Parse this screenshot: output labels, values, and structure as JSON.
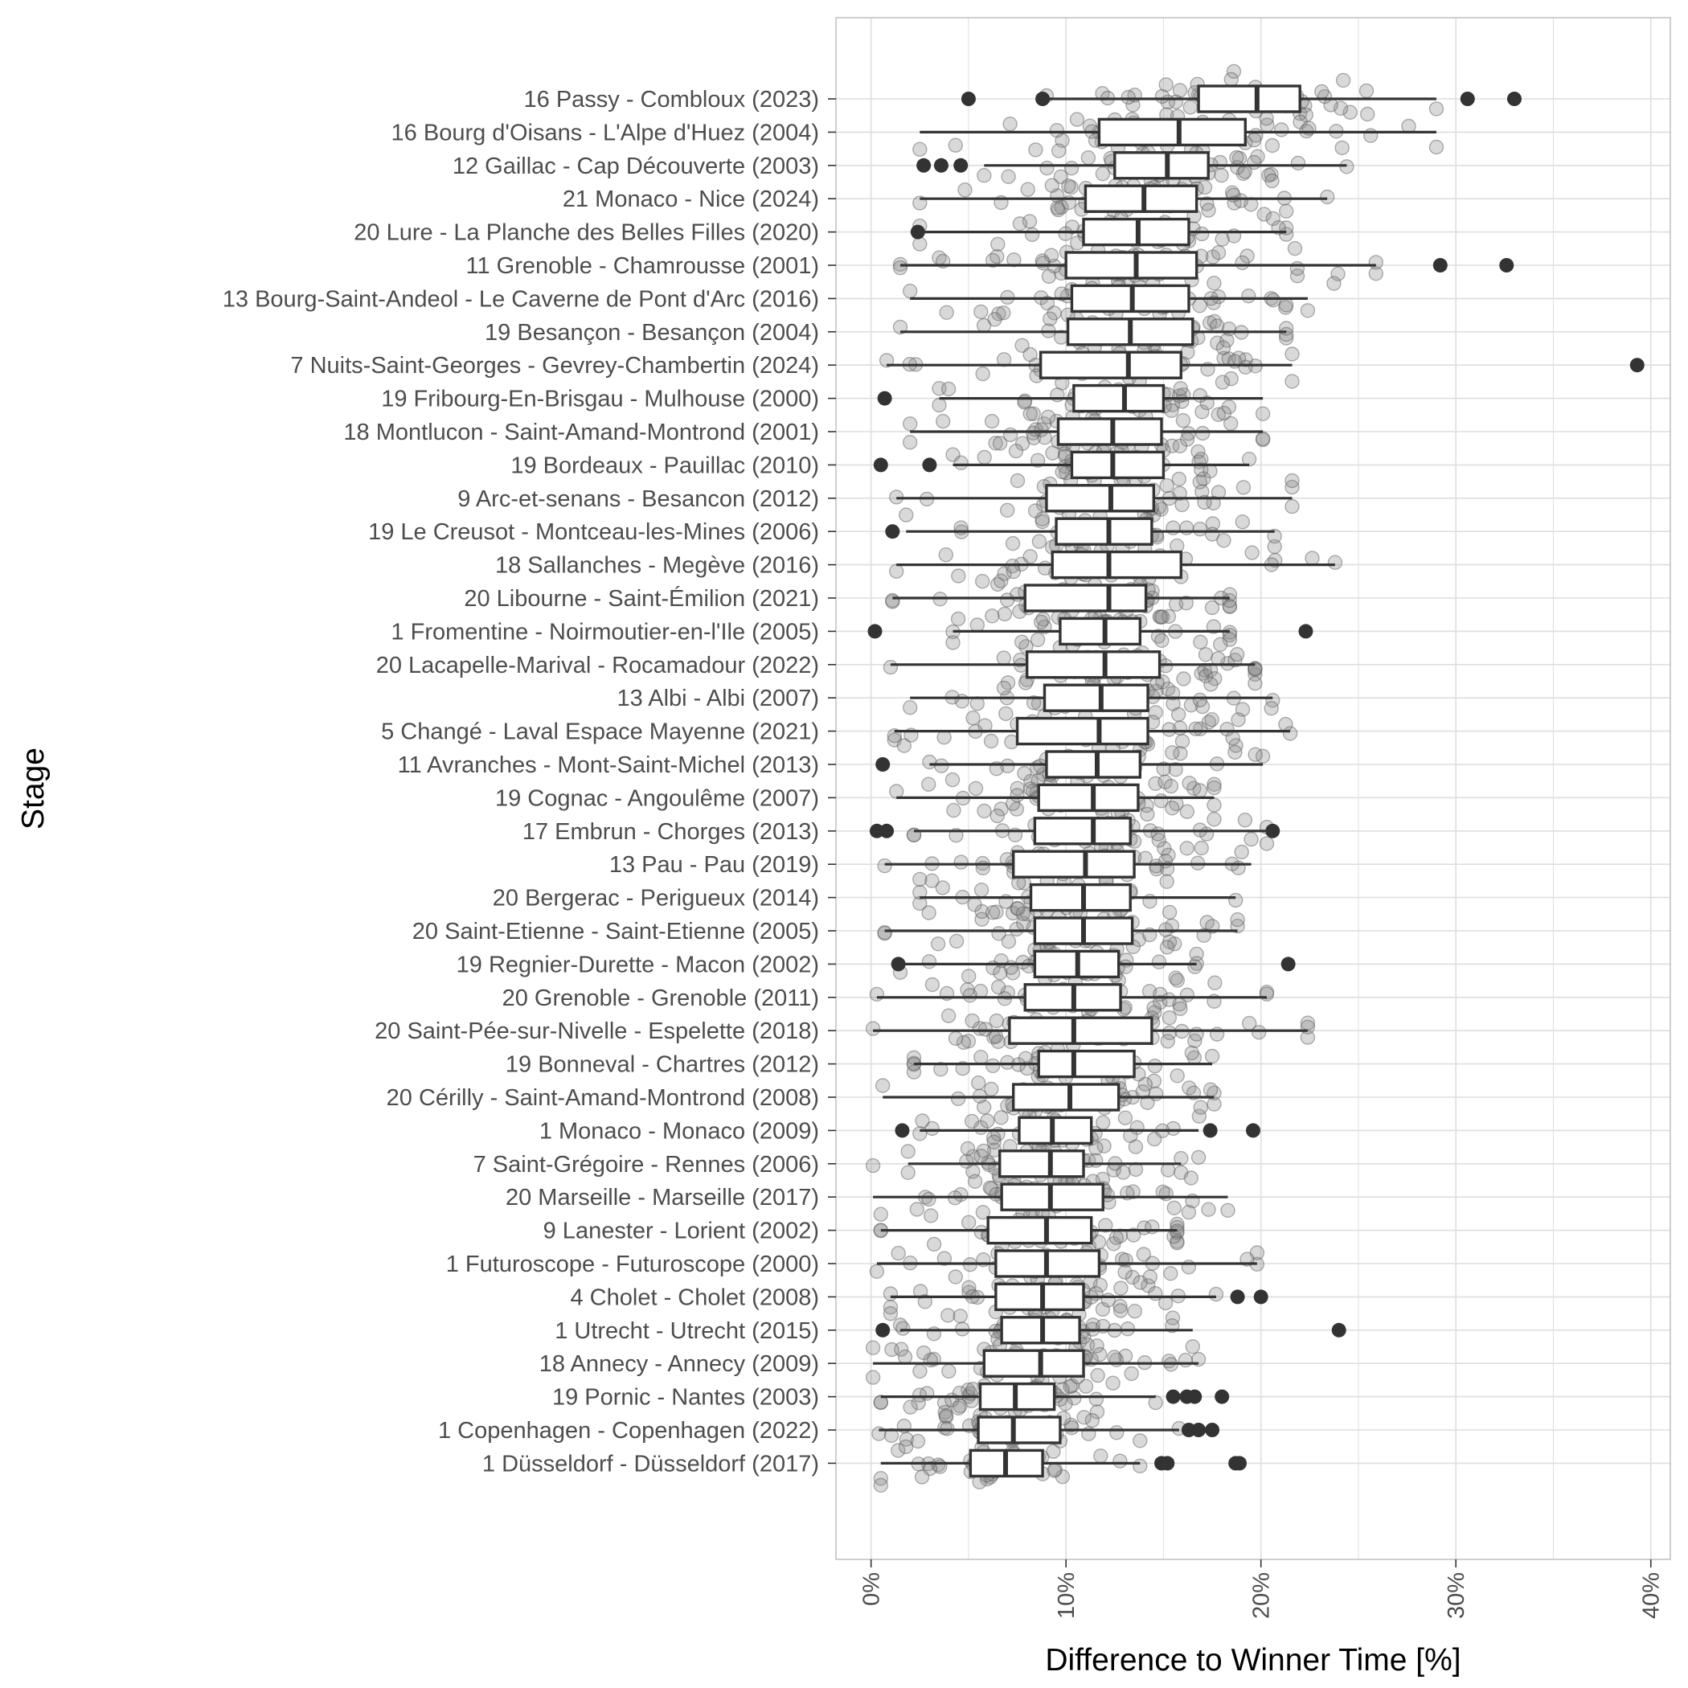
{
  "chart_data": {
    "type": "boxplot",
    "orientation": "horizontal",
    "xlabel": "Difference to Winner Time [%]",
    "ylabel": "Stage",
    "xlim": [
      -1.8,
      41
    ],
    "x_ticks": [
      0,
      10,
      20,
      30,
      40
    ],
    "x_tick_labels": [
      "0%",
      "10%",
      "20%",
      "30%",
      "40%"
    ],
    "grid": true,
    "series": [
      {
        "stage": "16 Passy - Combloux (2023)",
        "whisker_low": 9,
        "q1": 16.8,
        "median": 19.8,
        "q3": 22,
        "whisker_high": 29,
        "outliers": [
          5,
          8.8,
          30.6,
          33
        ]
      },
      {
        "stage": "16 Bourg d'Oisans - L'Alpe d'Huez (2004)",
        "whisker_low": 2.5,
        "q1": 11.7,
        "median": 15.8,
        "q3": 19.2,
        "whisker_high": 29,
        "outliers": []
      },
      {
        "stage": "12 Gaillac - Cap Découverte (2003)",
        "whisker_low": 5.8,
        "q1": 12.5,
        "median": 15.2,
        "q3": 17.3,
        "whisker_high": 24.4,
        "outliers": [
          2.7,
          3.6,
          4.6
        ]
      },
      {
        "stage": "21 Monaco - Nice (2024)",
        "whisker_low": 2.5,
        "q1": 11,
        "median": 14,
        "q3": 16.7,
        "whisker_high": 23.4,
        "outliers": []
      },
      {
        "stage": "20 Lure - La Planche des Belles Filles (2020)",
        "whisker_low": 2.5,
        "q1": 10.9,
        "median": 13.7,
        "q3": 16.3,
        "whisker_high": 21.3,
        "outliers": [
          2.4
        ]
      },
      {
        "stage": "11 Grenoble - Chamrousse (2001)",
        "whisker_low": 1.5,
        "q1": 10,
        "median": 13.6,
        "q3": 16.7,
        "whisker_high": 25.9,
        "outliers": [
          29.2,
          32.6
        ]
      },
      {
        "stage": "13 Bourg-Saint-Andeol - Le Caverne de Pont d'Arc (2016)",
        "whisker_low": 2,
        "q1": 10.3,
        "median": 13.4,
        "q3": 16.3,
        "whisker_high": 22.4,
        "outliers": []
      },
      {
        "stage": "19 Besançon - Besançon (2004)",
        "whisker_low": 1.5,
        "q1": 10.1,
        "median": 13.3,
        "q3": 16.5,
        "whisker_high": 21.3,
        "outliers": []
      },
      {
        "stage": "7 Nuits-Saint-Georges - Gevrey-Chambertin (2024)",
        "whisker_low": 0.8,
        "q1": 8.7,
        "median": 13.2,
        "q3": 15.9,
        "whisker_high": 21.6,
        "outliers": [
          39.3
        ]
      },
      {
        "stage": "19 Fribourg-En-Brisgau - Mulhouse (2000)",
        "whisker_low": 3.5,
        "q1": 10.4,
        "median": 13,
        "q3": 15,
        "whisker_high": 20.1,
        "outliers": [
          0.7
        ]
      },
      {
        "stage": "18 Montlucon - Saint-Amand-Montrond (2001)",
        "whisker_low": 2,
        "q1": 9.6,
        "median": 12.4,
        "q3": 14.9,
        "whisker_high": 20.1,
        "outliers": []
      },
      {
        "stage": "19 Bordeaux - Pauillac (2010)",
        "whisker_low": 4.2,
        "q1": 10.3,
        "median": 12.4,
        "q3": 15,
        "whisker_high": 19.4,
        "outliers": [
          0.5,
          3
        ]
      },
      {
        "stage": "9 Arc-et-senans - Besancon (2012)",
        "whisker_low": 1.3,
        "q1": 9,
        "median": 12.3,
        "q3": 14.5,
        "whisker_high": 21.6,
        "outliers": []
      },
      {
        "stage": "19 Le Creusot - Montceau-les-Mines (2006)",
        "whisker_low": 1.8,
        "q1": 9.5,
        "median": 12.2,
        "q3": 14.4,
        "whisker_high": 20.7,
        "outliers": [
          1.1
        ]
      },
      {
        "stage": "18 Sallanches - Megève (2016)",
        "whisker_low": 1.3,
        "q1": 9.3,
        "median": 12.2,
        "q3": 15.9,
        "whisker_high": 23.8,
        "outliers": []
      },
      {
        "stage": "20 Libourne - Saint-Émilion (2021)",
        "whisker_low": 1.1,
        "q1": 7.9,
        "median": 12.2,
        "q3": 14.1,
        "whisker_high": 18.4,
        "outliers": []
      },
      {
        "stage": "1 Fromentine - Noirmoutier-en-l'Ile (2005)",
        "whisker_low": 4.2,
        "q1": 9.7,
        "median": 12,
        "q3": 13.8,
        "whisker_high": 18.4,
        "outliers": [
          0.2,
          22.3
        ]
      },
      {
        "stage": "20 Lacapelle-Marival - Rocamadour (2022)",
        "whisker_low": 1,
        "q1": 8,
        "median": 12,
        "q3": 14.8,
        "whisker_high": 19.7,
        "outliers": []
      },
      {
        "stage": "13 Albi - Albi (2007)",
        "whisker_low": 2,
        "q1": 8.9,
        "median": 11.8,
        "q3": 14.2,
        "whisker_high": 20.6,
        "outliers": []
      },
      {
        "stage": "5 Changé - Laval Espace Mayenne (2021)",
        "whisker_low": 1.2,
        "q1": 7.5,
        "median": 11.7,
        "q3": 14.2,
        "whisker_high": 21.5,
        "outliers": []
      },
      {
        "stage": "11 Avranches - Mont-Saint-Michel (2013)",
        "whisker_low": 3,
        "q1": 9,
        "median": 11.6,
        "q3": 13.8,
        "whisker_high": 20.1,
        "outliers": [
          0.6
        ]
      },
      {
        "stage": "19 Cognac - Angoulême (2007)",
        "whisker_low": 1.3,
        "q1": 8.6,
        "median": 11.4,
        "q3": 13.7,
        "whisker_high": 17.6,
        "outliers": []
      },
      {
        "stage": "17 Embrun - Chorges (2013)",
        "whisker_low": 2.2,
        "q1": 8.4,
        "median": 11.4,
        "q3": 13.3,
        "whisker_high": 20.3,
        "outliers": [
          0.3,
          0.8,
          20.6
        ]
      },
      {
        "stage": "13 Pau - Pau (2019)",
        "whisker_low": 0.7,
        "q1": 7.3,
        "median": 11,
        "q3": 13.5,
        "whisker_high": 19.5,
        "outliers": []
      },
      {
        "stage": "20 Bergerac - Perigueux (2014)",
        "whisker_low": 2.5,
        "q1": 8.2,
        "median": 10.9,
        "q3": 13.3,
        "whisker_high": 18.7,
        "outliers": []
      },
      {
        "stage": "20 Saint-Etienne - Saint-Etienne (2005)",
        "whisker_low": 0.7,
        "q1": 8.4,
        "median": 10.9,
        "q3": 13.4,
        "whisker_high": 18.8,
        "outliers": []
      },
      {
        "stage": "19 Regnier-Durette - Macon (2002)",
        "whisker_low": 1.5,
        "q1": 8.4,
        "median": 10.6,
        "q3": 12.7,
        "whisker_high": 16.7,
        "outliers": [
          1.4,
          21.4
        ]
      },
      {
        "stage": "20 Grenoble - Grenoble (2011)",
        "whisker_low": 0.3,
        "q1": 7.9,
        "median": 10.4,
        "q3": 12.8,
        "whisker_high": 20.3,
        "outliers": []
      },
      {
        "stage": "20 Saint-Pée-sur-Nivelle - Espelette (2018)",
        "whisker_low": 0.1,
        "q1": 7.1,
        "median": 10.4,
        "q3": 14.4,
        "whisker_high": 22.4,
        "outliers": []
      },
      {
        "stage": "19 Bonneval - Chartres (2012)",
        "whisker_low": 2.2,
        "q1": 8.6,
        "median": 10.4,
        "q3": 13.5,
        "whisker_high": 17.5,
        "outliers": []
      },
      {
        "stage": "20 Cérilly - Saint-Amand-Montrond (2008)",
        "whisker_low": 0.6,
        "q1": 7.3,
        "median": 10.2,
        "q3": 12.7,
        "whisker_high": 17.6,
        "outliers": []
      },
      {
        "stage": "1 Monaco - Monaco (2009)",
        "whisker_low": 2.5,
        "q1": 7.6,
        "median": 9.3,
        "q3": 11.3,
        "whisker_high": 16.8,
        "outliers": [
          1.6,
          17.4,
          19.6
        ]
      },
      {
        "stage": "7 Saint-Grégoire - Rennes (2006)",
        "whisker_low": 1.9,
        "q1": 6.6,
        "median": 9.2,
        "q3": 10.9,
        "whisker_high": 15.9,
        "outliers": []
      },
      {
        "stage": "20 Marseille - Marseille (2017)",
        "whisker_low": 0.1,
        "q1": 6.7,
        "median": 9.2,
        "q3": 11.9,
        "whisker_high": 18.3,
        "outliers": []
      },
      {
        "stage": "9 Lanester - Lorient (2002)",
        "whisker_low": 0.5,
        "q1": 6,
        "median": 9,
        "q3": 11.3,
        "whisker_high": 15.7,
        "outliers": []
      },
      {
        "stage": "1 Futuroscope - Futuroscope (2000)",
        "whisker_low": 0.3,
        "q1": 6.4,
        "median": 9,
        "q3": 11.7,
        "whisker_high": 19.8,
        "outliers": []
      },
      {
        "stage": "4 Cholet - Cholet (2008)",
        "whisker_low": 1,
        "q1": 6.4,
        "median": 8.8,
        "q3": 10.9,
        "whisker_high": 17.7,
        "outliers": [
          18.8,
          20
        ]
      },
      {
        "stage": "1 Utrecht - Utrecht (2015)",
        "whisker_low": 1.5,
        "q1": 6.7,
        "median": 8.8,
        "q3": 10.7,
        "whisker_high": 16.5,
        "outliers": [
          0.6,
          24
        ]
      },
      {
        "stage": "18 Annecy - Annecy (2009)",
        "whisker_low": 0.1,
        "q1": 5.8,
        "median": 8.7,
        "q3": 10.9,
        "whisker_high": 16.8,
        "outliers": []
      },
      {
        "stage": "19 Pornic - Nantes (2003)",
        "whisker_low": 0.5,
        "q1": 5.6,
        "median": 7.4,
        "q3": 9.4,
        "whisker_high": 14.6,
        "outliers": [
          15.5,
          16.2,
          16.6,
          18
        ]
      },
      {
        "stage": "1 Copenhagen - Copenhagen (2022)",
        "whisker_low": 0.4,
        "q1": 5.5,
        "median": 7.3,
        "q3": 9.7,
        "whisker_high": 15.8,
        "outliers": [
          16.3,
          16.8,
          17.5
        ]
      },
      {
        "stage": "1 Düsseldorf - Düsseldorf (2017)",
        "whisker_low": 0.5,
        "q1": 5.1,
        "median": 6.9,
        "q3": 8.8,
        "whisker_high": 13.8,
        "outliers": [
          14.9,
          15.2,
          18.7,
          18.9
        ]
      }
    ]
  },
  "colors": {
    "box_line": "#333333",
    "box_fill": "#ffffff",
    "jitter_point": "#8a8a8a",
    "grid": "#dedede",
    "panel_border": "#bfbfbf"
  }
}
